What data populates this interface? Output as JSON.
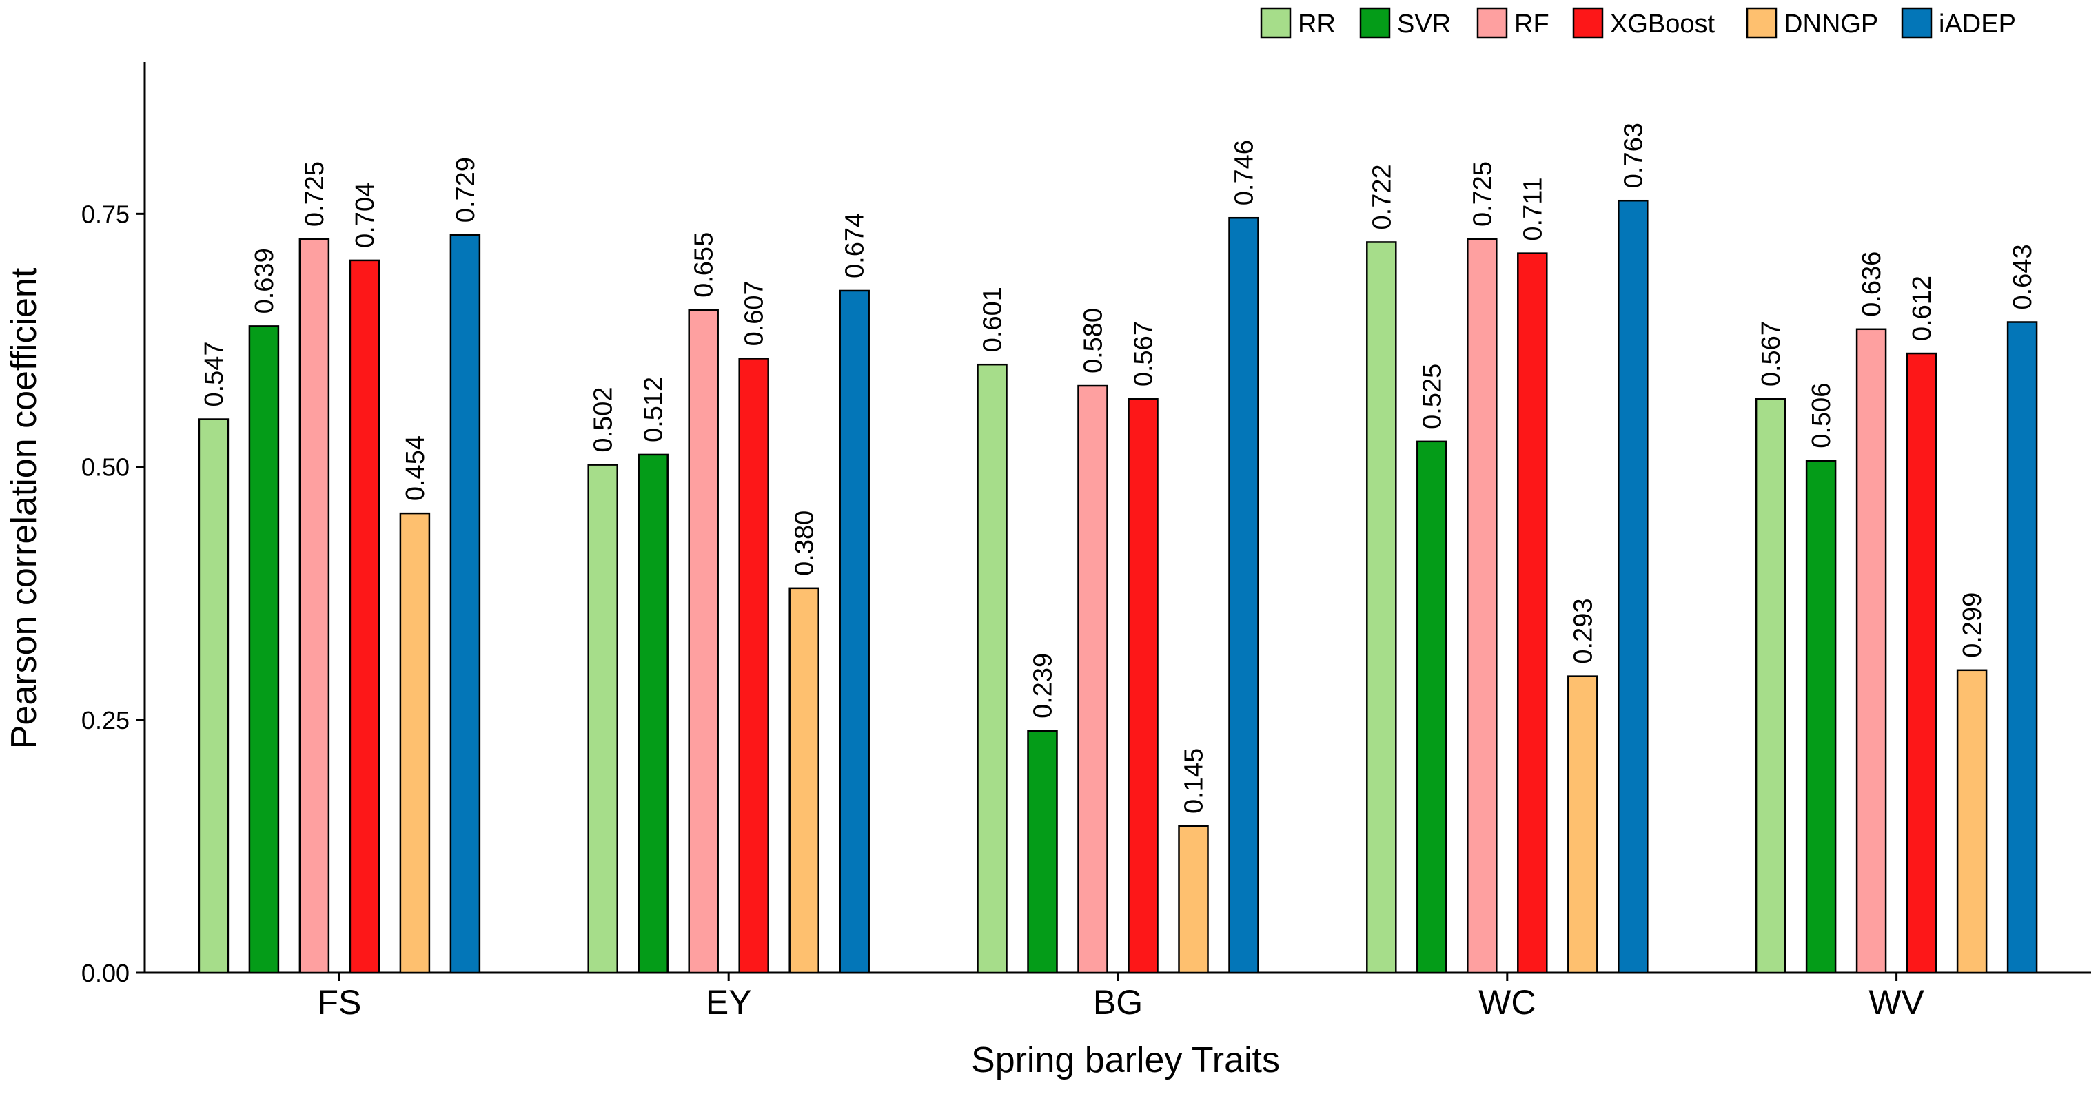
{
  "chart_data": {
    "type": "bar",
    "title": "",
    "xlabel": "Spring barley Traits",
    "ylabel": "Pearson correlation coefficient",
    "ylim": [
      0,
      0.9
    ],
    "yticks": [
      0.0,
      0.25,
      0.5,
      0.75
    ],
    "ytick_labels": [
      "0.00",
      "0.25",
      "0.50",
      "0.75"
    ],
    "grid": false,
    "legend_position": "top-right",
    "categories": [
      "FS",
      "EY",
      "BG",
      "WC",
      "WV"
    ],
    "series": [
      {
        "name": "RR",
        "color": "#a6dd8a",
        "values": [
          0.547,
          0.502,
          0.601,
          0.722,
          0.567
        ],
        "labels": [
          "0.547",
          "0.502",
          "0.601",
          "0.722",
          "0.567"
        ]
      },
      {
        "name": "SVR",
        "color": "#049c18",
        "values": [
          0.639,
          0.512,
          0.239,
          0.525,
          0.506
        ],
        "labels": [
          "0.639",
          "0.512",
          "0.239",
          "0.525",
          "0.506"
        ]
      },
      {
        "name": "RF",
        "color": "#fea0a0",
        "values": [
          0.725,
          0.655,
          0.58,
          0.725,
          0.636
        ],
        "labels": [
          "0.725",
          "0.655",
          "0.580",
          "0.725",
          "0.636"
        ]
      },
      {
        "name": "XGBoost",
        "color": "#fd1718",
        "values": [
          0.704,
          0.607,
          0.567,
          0.711,
          0.612
        ],
        "labels": [
          "0.704",
          "0.607",
          "0.567",
          "0.711",
          "0.612"
        ]
      },
      {
        "name": "DNNGP",
        "color": "#fec06f",
        "values": [
          0.454,
          0.38,
          0.145,
          0.293,
          0.299
        ],
        "labels": [
          "0.454",
          "0.380",
          "0.145",
          "0.293",
          "0.299"
        ]
      },
      {
        "name": "iADEP",
        "color": "#0376b8",
        "values": [
          0.729,
          0.674,
          0.746,
          0.763,
          0.643
        ],
        "labels": [
          "0.729",
          "0.674",
          "0.746",
          "0.763",
          "0.643"
        ]
      }
    ]
  }
}
